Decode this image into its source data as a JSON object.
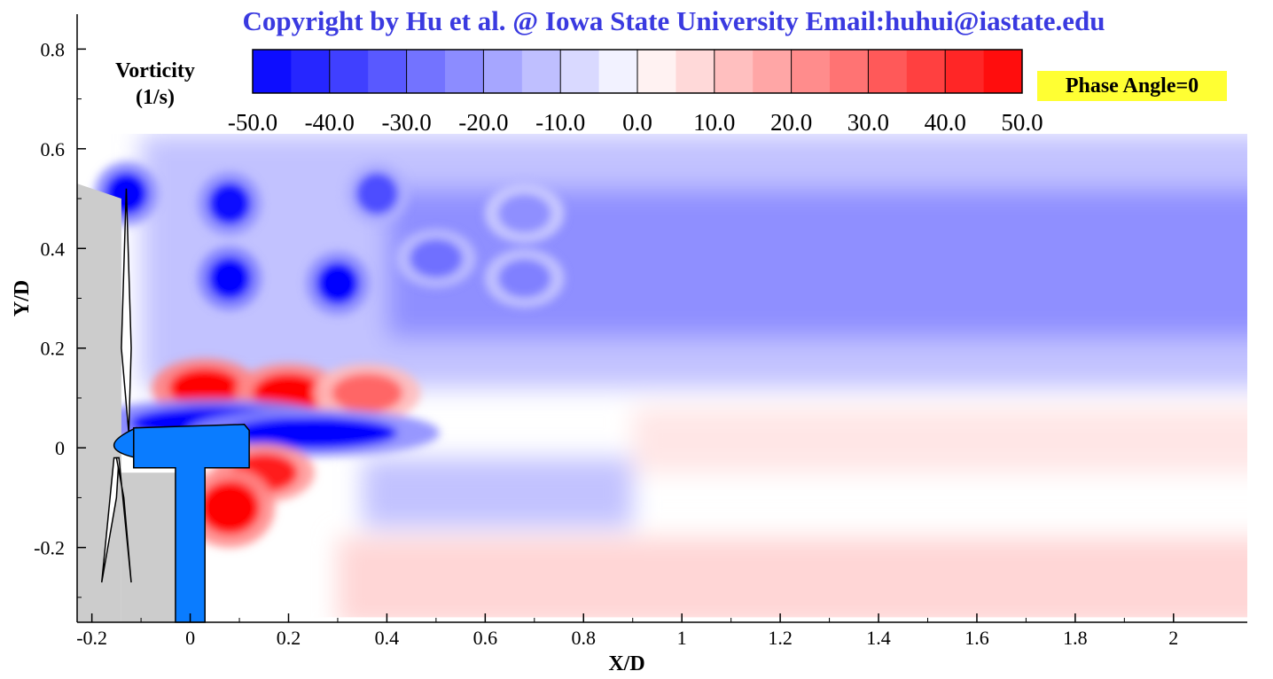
{
  "header": {
    "copyright": "Copyright by Hu et al. @ Iowa State University  Email:huhui@iastate.edu",
    "phase_label": "Phase Angle=0"
  },
  "colorbar": {
    "title_line1": "Vorticity",
    "title_line2": "(1/s)",
    "min": -50,
    "max": 50,
    "tick_values": [
      -50,
      -40,
      -30,
      -20,
      -10,
      0,
      10,
      20,
      30,
      40,
      50
    ],
    "tick_labels": [
      "-50.0",
      "-40.0",
      "-30.0",
      "-20.0",
      "-10.0",
      "0.0",
      "10.0",
      "20.0",
      "30.0",
      "40.0",
      "50.0"
    ],
    "neg_color": "#0000ff",
    "zero_color": "#ffffff",
    "pos_color": "#ff0000"
  },
  "chart_data": {
    "type": "heatmap",
    "variable": "Vorticity (1/s)",
    "xlabel": "X/D",
    "ylabel": "Y/D",
    "xlim": [
      -0.23,
      2.15
    ],
    "ylim": [
      -0.35,
      0.87
    ],
    "data_xlim": [
      -0.22,
      2.15
    ],
    "data_ylim": [
      -0.34,
      0.63
    ],
    "x_ticks": [
      -0.2,
      0,
      0.2,
      0.4,
      0.6,
      0.8,
      1,
      1.2,
      1.4,
      1.6,
      1.8,
      2
    ],
    "x_tick_labels": [
      "-0.2",
      "0",
      "0.2",
      "0.4",
      "0.6",
      "0.8",
      "1",
      "1.2",
      "1.4",
      "1.6",
      "1.8",
      "2"
    ],
    "y_ticks": [
      -0.2,
      0,
      0.2,
      0.4,
      0.6,
      0.8
    ],
    "y_tick_labels": [
      "-0.2",
      "0",
      "0.2",
      "0.4",
      "0.6",
      "0.8"
    ],
    "features": [
      {
        "kind": "tip_vortex",
        "x": -0.13,
        "y": 0.51,
        "vorticity": -50
      },
      {
        "kind": "tip_vortex",
        "x": 0.08,
        "y": 0.49,
        "vorticity": -48
      },
      {
        "kind": "tip_vortex",
        "x": 0.08,
        "y": 0.34,
        "vorticity": -55
      },
      {
        "kind": "tip_vortex",
        "x": 0.3,
        "y": 0.33,
        "vorticity": -50
      },
      {
        "kind": "tip_vortex",
        "x": 0.38,
        "y": 0.51,
        "vorticity": -35
      },
      {
        "kind": "vortex",
        "x": 0.5,
        "y": 0.38,
        "vorticity": -28
      },
      {
        "kind": "vortex",
        "x": 0.68,
        "y": 0.34,
        "vorticity": -25
      },
      {
        "kind": "vortex",
        "x": 0.68,
        "y": 0.47,
        "vorticity": -22
      },
      {
        "kind": "root_shear_layer",
        "x": 0.03,
        "y": 0.12,
        "vorticity": 55
      },
      {
        "kind": "root_shear_layer",
        "x": 0.2,
        "y": 0.11,
        "vorticity": 52
      },
      {
        "kind": "root_shear_layer",
        "x": 0.36,
        "y": 0.11,
        "vorticity": 30
      },
      {
        "kind": "nacelle_shear_layer",
        "x": 0.05,
        "y": 0.05,
        "vorticity": -55
      },
      {
        "kind": "nacelle_shear_layer",
        "x": 0.25,
        "y": 0.03,
        "vorticity": -50
      },
      {
        "kind": "hub_wake",
        "x": 0.15,
        "y": -0.05,
        "vorticity": 45
      },
      {
        "kind": "tower_wake",
        "x": 0.08,
        "y": -0.12,
        "vorticity": 50
      }
    ]
  }
}
